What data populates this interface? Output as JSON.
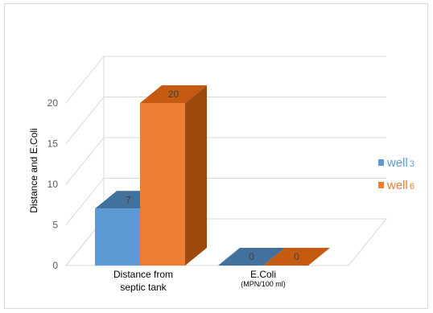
{
  "chart_data": {
    "type": "bar",
    "style": "3d-clustered-column",
    "categories": [
      "Distance from septic tank",
      "E.Coli"
    ],
    "category_lines": [
      [
        "Distance from",
        "septic tank"
      ],
      [
        "E.Coli",
        "(MPN/100 ml)"
      ]
    ],
    "series": [
      {
        "name": "well 3",
        "name_main": "well",
        "name_num": "3",
        "values": [
          7,
          0
        ],
        "color": "#5b9bd5",
        "top_color": "#41719c",
        "side_color": "#2e5d8a"
      },
      {
        "name": "well 6",
        "name_main": "well",
        "name_num": "6",
        "values": [
          20,
          0
        ],
        "color": "#ed7d31",
        "top_color": "#c55a11",
        "side_color": "#9e4a0f"
      }
    ],
    "data_labels": [
      [
        "7",
        "0"
      ],
      [
        "20",
        "0"
      ]
    ],
    "title": "",
    "xlabel": "",
    "ylabel": "Distance and E.Coli",
    "yticks": [
      0,
      5,
      10,
      15,
      20
    ],
    "ylim": [
      0,
      20
    ],
    "grid": true,
    "legend_position": "right"
  }
}
